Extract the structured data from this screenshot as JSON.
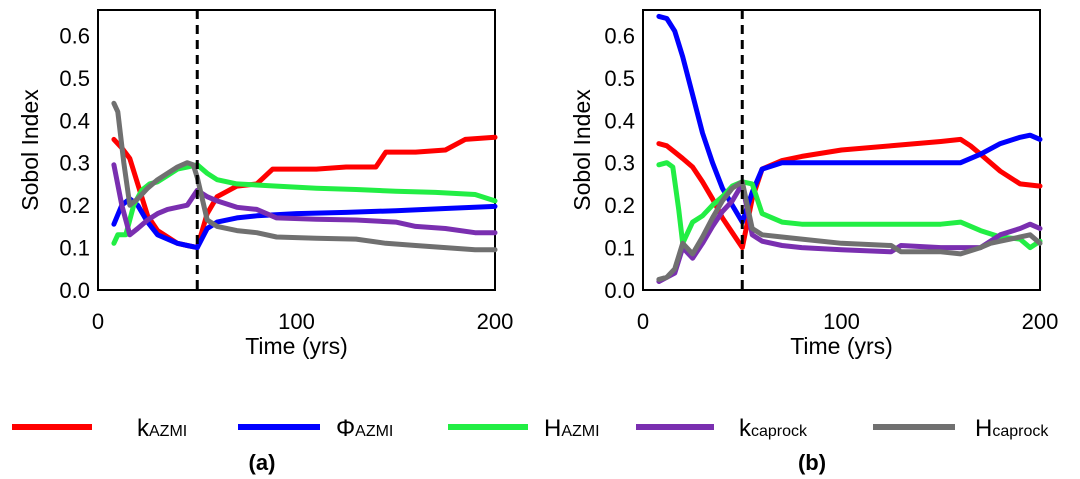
{
  "chart_data": [
    {
      "type": "line",
      "panel_label": "(a)",
      "xlabel": "Time (yrs)",
      "ylabel": "Sobol Index",
      "xlim": [
        0,
        200
      ],
      "ylim": [
        0.0,
        0.66
      ],
      "xticks": [
        "0",
        "100",
        "200"
      ],
      "yticks": [
        "0.0",
        "0.1",
        "0.2",
        "0.3",
        "0.4",
        "0.5",
        "0.6"
      ],
      "vline_x": 50,
      "series": [
        {
          "name": "kAZMI",
          "color": "#ff0000",
          "x": [
            8,
            12,
            16,
            20,
            25,
            30,
            35,
            40,
            45,
            50,
            55,
            60,
            70,
            80,
            88,
            95,
            110,
            125,
            140,
            145,
            160,
            175,
            185,
            200
          ],
          "y": [
            0.355,
            0.335,
            0.31,
            0.25,
            0.175,
            0.14,
            0.125,
            0.11,
            0.105,
            0.1,
            0.18,
            0.22,
            0.245,
            0.25,
            0.285,
            0.285,
            0.285,
            0.29,
            0.29,
            0.325,
            0.325,
            0.33,
            0.355,
            0.36
          ]
        },
        {
          "name": "ΦAZMI",
          "color": "#0000ff",
          "x": [
            8,
            12,
            16,
            20,
            25,
            30,
            35,
            40,
            45,
            50,
            55,
            60,
            70,
            80,
            100,
            125,
            150,
            175,
            200
          ],
          "y": [
            0.155,
            0.2,
            0.215,
            0.2,
            0.16,
            0.13,
            0.12,
            0.11,
            0.105,
            0.1,
            0.145,
            0.16,
            0.17,
            0.175,
            0.18,
            0.183,
            0.187,
            0.192,
            0.197
          ]
        },
        {
          "name": "HAZMI",
          "color": "#22ee44",
          "x": [
            8,
            10,
            14,
            18,
            22,
            26,
            30,
            35,
            40,
            45,
            50,
            55,
            60,
            70,
            90,
            110,
            130,
            150,
            170,
            190,
            200
          ],
          "y": [
            0.11,
            0.13,
            0.13,
            0.2,
            0.235,
            0.25,
            0.255,
            0.27,
            0.285,
            0.29,
            0.295,
            0.275,
            0.26,
            0.25,
            0.245,
            0.24,
            0.237,
            0.233,
            0.23,
            0.225,
            0.21
          ]
        },
        {
          "name": "kcaprock",
          "color": "#7a2fb0",
          "x": [
            8,
            12,
            16,
            20,
            25,
            30,
            35,
            40,
            45,
            50,
            55,
            60,
            70,
            80,
            90,
            110,
            130,
            150,
            160,
            175,
            190,
            200
          ],
          "y": [
            0.295,
            0.2,
            0.13,
            0.145,
            0.165,
            0.18,
            0.19,
            0.195,
            0.2,
            0.235,
            0.22,
            0.21,
            0.195,
            0.19,
            0.17,
            0.167,
            0.165,
            0.16,
            0.15,
            0.145,
            0.135,
            0.135
          ]
        },
        {
          "name": "Hcaprock",
          "color": "#707070",
          "x": [
            8,
            10,
            13,
            16,
            20,
            25,
            30,
            35,
            40,
            45,
            48,
            50,
            55,
            60,
            70,
            80,
            90,
            110,
            130,
            145,
            160,
            175,
            190,
            200
          ],
          "y": [
            0.44,
            0.42,
            0.3,
            0.2,
            0.215,
            0.24,
            0.26,
            0.275,
            0.29,
            0.3,
            0.295,
            0.265,
            0.165,
            0.15,
            0.14,
            0.135,
            0.125,
            0.122,
            0.12,
            0.11,
            0.105,
            0.1,
            0.095,
            0.095
          ]
        }
      ]
    },
    {
      "type": "line",
      "panel_label": "(b)",
      "xlabel": "Time (yrs)",
      "ylabel": "Sobol Index",
      "xlim": [
        0,
        200
      ],
      "ylim": [
        0.0,
        0.66
      ],
      "xticks": [
        "0",
        "100",
        "200"
      ],
      "yticks": [
        "0.0",
        "0.1",
        "0.2",
        "0.3",
        "0.4",
        "0.5",
        "0.6"
      ],
      "vline_x": 50,
      "series": [
        {
          "name": "kAZMI",
          "color": "#ff0000",
          "x": [
            8,
            12,
            16,
            20,
            25,
            30,
            35,
            40,
            45,
            50,
            55,
            60,
            70,
            80,
            100,
            125,
            150,
            160,
            165,
            170,
            180,
            190,
            200
          ],
          "y": [
            0.345,
            0.34,
            0.325,
            0.31,
            0.29,
            0.255,
            0.215,
            0.17,
            0.135,
            0.1,
            0.215,
            0.285,
            0.305,
            0.315,
            0.33,
            0.34,
            0.35,
            0.355,
            0.34,
            0.32,
            0.28,
            0.25,
            0.245
          ]
        },
        {
          "name": "ΦAZMI",
          "color": "#0000ff",
          "x": [
            8,
            12,
            16,
            20,
            25,
            30,
            35,
            40,
            45,
            50,
            55,
            60,
            70,
            80,
            100,
            125,
            150,
            160,
            170,
            180,
            190,
            195,
            200
          ],
          "y": [
            0.645,
            0.64,
            0.61,
            0.55,
            0.46,
            0.37,
            0.3,
            0.24,
            0.2,
            0.16,
            0.23,
            0.285,
            0.3,
            0.3,
            0.3,
            0.3,
            0.3,
            0.3,
            0.32,
            0.345,
            0.36,
            0.365,
            0.355
          ]
        },
        {
          "name": "HAZMI",
          "color": "#22ee44",
          "x": [
            8,
            12,
            15,
            18,
            20,
            25,
            30,
            35,
            40,
            45,
            50,
            55,
            60,
            70,
            80,
            100,
            125,
            150,
            160,
            170,
            180,
            190,
            195,
            200
          ],
          "y": [
            0.295,
            0.3,
            0.29,
            0.19,
            0.11,
            0.16,
            0.175,
            0.2,
            0.22,
            0.245,
            0.255,
            0.25,
            0.18,
            0.16,
            0.155,
            0.155,
            0.155,
            0.155,
            0.16,
            0.14,
            0.125,
            0.12,
            0.1,
            0.115
          ]
        },
        {
          "name": "kcaprock",
          "color": "#7a2fb0",
          "x": [
            8,
            12,
            16,
            20,
            25,
            30,
            35,
            40,
            45,
            50,
            55,
            60,
            70,
            80,
            100,
            125,
            130,
            150,
            160,
            170,
            180,
            190,
            195,
            200
          ],
          "y": [
            0.02,
            0.03,
            0.04,
            0.1,
            0.075,
            0.11,
            0.15,
            0.185,
            0.21,
            0.25,
            0.13,
            0.115,
            0.105,
            0.1,
            0.095,
            0.09,
            0.105,
            0.1,
            0.1,
            0.1,
            0.13,
            0.145,
            0.155,
            0.145
          ]
        },
        {
          "name": "Hcaprock",
          "color": "#707070",
          "x": [
            8,
            12,
            16,
            20,
            25,
            30,
            35,
            40,
            45,
            50,
            55,
            60,
            70,
            80,
            100,
            125,
            130,
            150,
            160,
            170,
            175,
            180,
            190,
            195,
            200
          ],
          "y": [
            0.025,
            0.03,
            0.05,
            0.11,
            0.085,
            0.125,
            0.17,
            0.21,
            0.24,
            0.255,
            0.145,
            0.13,
            0.125,
            0.12,
            0.11,
            0.105,
            0.09,
            0.09,
            0.085,
            0.1,
            0.11,
            0.115,
            0.125,
            0.13,
            0.11
          ]
        }
      ]
    }
  ],
  "legend": [
    {
      "main": "k",
      "sub": "AZMI",
      "color": "#ff0000"
    },
    {
      "main": "Φ",
      "sub": "AZMI",
      "color": "#0000ff"
    },
    {
      "main": "H",
      "sub": "AZMI",
      "color": "#22ee44"
    },
    {
      "main": "k",
      "sub": "caprock",
      "color": "#7a2fb0"
    },
    {
      "main": "H",
      "sub": "caprock",
      "color": "#707070"
    }
  ]
}
